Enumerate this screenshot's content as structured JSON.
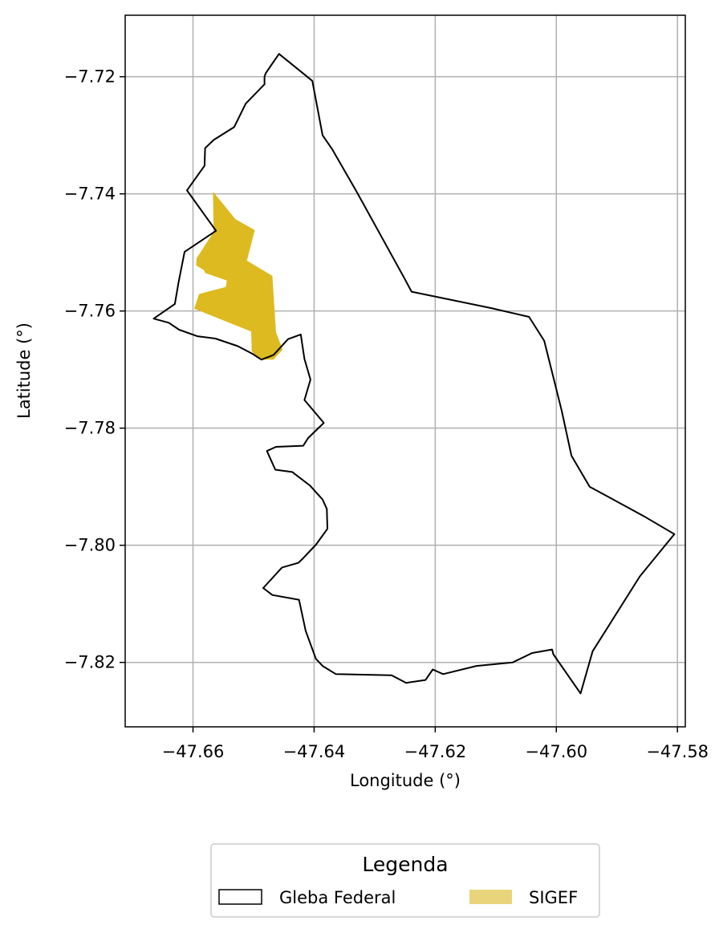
{
  "chart_data": {
    "type": "map",
    "xlabel": "Longitude (°)",
    "ylabel": "Latitude (°)",
    "xlim": [
      -47.6712,
      -47.5787
    ],
    "ylim": [
      -7.831,
      -7.7095
    ],
    "xticks": [
      -47.66,
      -47.64,
      -47.62,
      -47.6,
      -47.58
    ],
    "xtick_labels": [
      "−47.66",
      "−47.64",
      "−47.62",
      "−47.60",
      "−47.58"
    ],
    "yticks": [
      -7.72,
      -7.74,
      -7.76,
      -7.78,
      -7.8,
      -7.82
    ],
    "ytick_labels": [
      "−7.72",
      "−7.74",
      "−7.76",
      "−7.78",
      "−7.80",
      "−7.82"
    ],
    "grid": true,
    "legend": {
      "title": "Legenda",
      "placement": "bottom-center, below plot",
      "entries": [
        "Gleba Federal",
        "SIGEF"
      ]
    },
    "layers": [
      {
        "name": "Gleba Federal",
        "fill": "none",
        "stroke": "#000000",
        "coords": [
          [
            -47.6458,
            -7.7161
          ],
          [
            -47.6403,
            -7.7207
          ],
          [
            -47.6386,
            -7.73
          ],
          [
            -47.637,
            -7.7324
          ],
          [
            -47.633,
            -7.7396
          ],
          [
            -47.6251,
            -7.7544
          ],
          [
            -47.6239,
            -7.7567
          ],
          [
            -47.6108,
            -7.7595
          ],
          [
            -47.6045,
            -7.761
          ],
          [
            -47.602,
            -7.7651
          ],
          [
            -47.5991,
            -7.7771
          ],
          [
            -47.5975,
            -7.7847
          ],
          [
            -47.5945,
            -7.79
          ],
          [
            -47.5856,
            -7.795
          ],
          [
            -47.5805,
            -7.7981
          ],
          [
            -47.5862,
            -7.8053
          ],
          [
            -47.594,
            -7.8181
          ],
          [
            -47.596,
            -7.8253
          ],
          [
            -47.6005,
            -7.8186
          ],
          [
            -47.6007,
            -7.8178
          ],
          [
            -47.604,
            -7.8184
          ],
          [
            -47.6072,
            -7.82
          ],
          [
            -47.6132,
            -7.8206
          ],
          [
            -47.6187,
            -7.822
          ],
          [
            -47.6204,
            -7.8212
          ],
          [
            -47.6216,
            -7.823
          ],
          [
            -47.6248,
            -7.8235
          ],
          [
            -47.6272,
            -7.8222
          ],
          [
            -47.6364,
            -7.822
          ],
          [
            -47.6386,
            -7.8206
          ],
          [
            -47.6397,
            -7.8194
          ],
          [
            -47.6414,
            -7.8146
          ],
          [
            -47.6425,
            -7.8093
          ],
          [
            -47.6469,
            -7.8085
          ],
          [
            -47.6484,
            -7.8073
          ],
          [
            -47.6453,
            -7.8038
          ],
          [
            -47.6426,
            -7.803
          ],
          [
            -47.6419,
            -7.8023
          ],
          [
            -47.6397,
            -7.7999
          ],
          [
            -47.6378,
            -7.7972
          ],
          [
            -47.6379,
            -7.7938
          ],
          [
            -47.6386,
            -7.7922
          ],
          [
            -47.6407,
            -7.7898
          ],
          [
            -47.6436,
            -7.7875
          ],
          [
            -47.6464,
            -7.7871
          ],
          [
            -47.6478,
            -7.7839
          ],
          [
            -47.6463,
            -7.7832
          ],
          [
            -47.6418,
            -7.783
          ],
          [
            -47.641,
            -7.7817
          ],
          [
            -47.6384,
            -7.7791
          ],
          [
            -47.6416,
            -7.7752
          ],
          [
            -47.6406,
            -7.7717
          ],
          [
            -47.6416,
            -7.7682
          ],
          [
            -47.6422,
            -7.764
          ],
          [
            -47.6443,
            -7.7648
          ],
          [
            -47.6467,
            -7.7675
          ],
          [
            -47.6487,
            -7.7683
          ],
          [
            -47.6502,
            -7.7673
          ],
          [
            -47.6526,
            -7.766
          ],
          [
            -47.6563,
            -7.7647
          ],
          [
            -47.6593,
            -7.7643
          ],
          [
            -47.6623,
            -7.7632
          ],
          [
            -47.664,
            -7.762
          ],
          [
            -47.6665,
            -7.7613
          ],
          [
            -47.663,
            -7.7588
          ],
          [
            -47.6624,
            -7.7552
          ],
          [
            -47.6614,
            -7.7499
          ],
          [
            -47.6562,
            -7.7463
          ],
          [
            -47.661,
            -7.7394
          ],
          [
            -47.6581,
            -7.7352
          ],
          [
            -47.658,
            -7.7322
          ],
          [
            -47.6566,
            -7.7308
          ],
          [
            -47.6532,
            -7.7286
          ],
          [
            -47.6513,
            -7.7246
          ],
          [
            -47.6482,
            -7.7213
          ],
          [
            -47.6482,
            -7.72
          ],
          [
            -47.648,
            -7.7194
          ],
          [
            -47.6472,
            -7.7182
          ],
          [
            -47.6458,
            -7.7161
          ]
        ]
      },
      {
        "name": "SIGEF",
        "fill": "#ddba1f",
        "stroke": "none",
        "coords": [
          [
            -47.6567,
            -7.7396
          ],
          [
            -47.653,
            -7.7443
          ],
          [
            -47.6498,
            -7.7462
          ],
          [
            -47.6511,
            -7.7514
          ],
          [
            -47.6469,
            -7.754
          ],
          [
            -47.6463,
            -7.7636
          ],
          [
            -47.6452,
            -7.7666
          ],
          [
            -47.6467,
            -7.7683
          ],
          [
            -47.649,
            -7.7683
          ],
          [
            -47.6503,
            -7.7669
          ],
          [
            -47.6504,
            -7.7635
          ],
          [
            -47.6598,
            -7.7596
          ],
          [
            -47.659,
            -7.7571
          ],
          [
            -47.6546,
            -7.7559
          ],
          [
            -47.6544,
            -7.7548
          ],
          [
            -47.658,
            -7.7535
          ],
          [
            -47.6582,
            -7.753
          ],
          [
            -47.6595,
            -7.7522
          ],
          [
            -47.6594,
            -7.751
          ],
          [
            -47.6566,
            -7.7465
          ],
          [
            -47.6567,
            -7.7396
          ]
        ]
      }
    ]
  }
}
